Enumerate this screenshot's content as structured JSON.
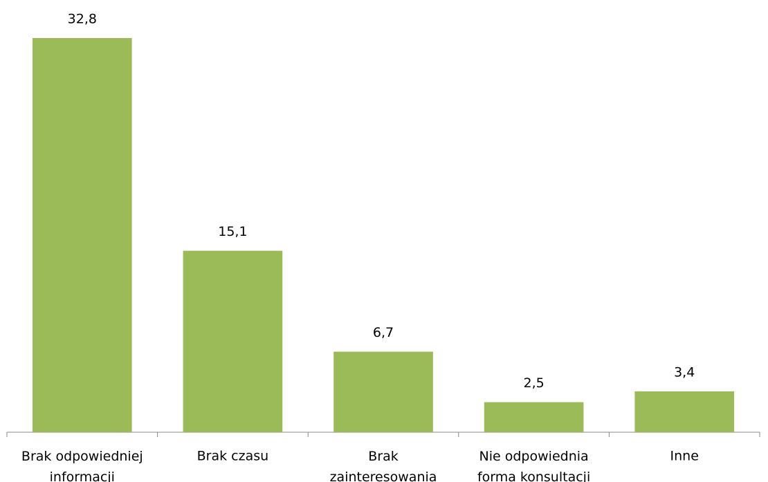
{
  "chart_data": {
    "type": "bar",
    "categories": [
      "Brak odpowiedniej\ninformacji",
      "Brak czasu",
      "Brak\nzainteresowania",
      "Nie odpowiednia\nforma konsultacji",
      "Inne"
    ],
    "values": [
      32.8,
      15.1,
      6.7,
      2.5,
      3.4
    ],
    "value_labels": [
      "32,8",
      "15,1",
      "6,7",
      "2,5",
      "3,4"
    ],
    "color": "#9bbb59"
  }
}
